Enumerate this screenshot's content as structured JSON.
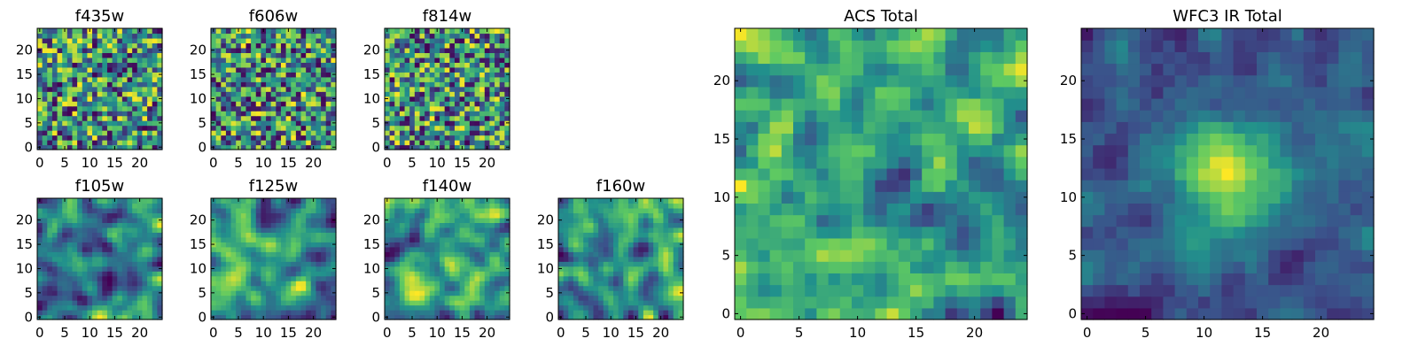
{
  "chart_data": [
    {
      "type": "heatmap",
      "title": "f435w",
      "size": 25,
      "xticks": [
        0,
        5,
        10,
        15,
        20
      ],
      "yticks": [
        0,
        5,
        10,
        15,
        20
      ],
      "colormap": "viridis",
      "value_range": [
        0,
        1
      ],
      "pattern": "noise",
      "seed": 11
    },
    {
      "type": "heatmap",
      "title": "f606w",
      "size": 25,
      "xticks": [
        0,
        5,
        10,
        15,
        20
      ],
      "yticks": [
        0,
        5,
        10,
        15,
        20
      ],
      "colormap": "viridis",
      "value_range": [
        0,
        1
      ],
      "pattern": "noise",
      "seed": 23
    },
    {
      "type": "heatmap",
      "title": "f814w",
      "size": 25,
      "xticks": [
        0,
        5,
        10,
        15,
        20
      ],
      "yticks": [
        0,
        5,
        10,
        15,
        20
      ],
      "colormap": "viridis",
      "value_range": [
        0,
        1
      ],
      "pattern": "noise",
      "seed": 37
    },
    {
      "type": "heatmap",
      "title": "f105w",
      "size": 25,
      "xticks": [
        0,
        5,
        10,
        15,
        20
      ],
      "yticks": [
        0,
        5,
        10,
        15,
        20
      ],
      "colormap": "viridis",
      "value_range": [
        0,
        1
      ],
      "pattern": "smooth",
      "seed": 41
    },
    {
      "type": "heatmap",
      "title": "f125w",
      "size": 25,
      "xticks": [
        0,
        5,
        10,
        15,
        20
      ],
      "yticks": [
        0,
        5,
        10,
        15,
        20
      ],
      "colormap": "viridis",
      "value_range": [
        0,
        1
      ],
      "pattern": "smooth",
      "seed": 53
    },
    {
      "type": "heatmap",
      "title": "f140w",
      "size": 25,
      "xticks": [
        0,
        5,
        10,
        15,
        20
      ],
      "yticks": [
        0,
        5,
        10,
        15,
        20
      ],
      "colormap": "viridis",
      "value_range": [
        0,
        1
      ],
      "pattern": "smooth",
      "seed": 67
    },
    {
      "type": "heatmap",
      "title": "f160w",
      "size": 25,
      "xticks": [
        0,
        5,
        10,
        15,
        20
      ],
      "yticks": [
        0,
        5,
        10,
        15,
        20
      ],
      "colormap": "viridis",
      "value_range": [
        0,
        1
      ],
      "pattern": "smooth",
      "seed": 79
    },
    {
      "type": "heatmap",
      "title": "ACS Total",
      "size": 25,
      "xticks": [
        0,
        5,
        10,
        15,
        20
      ],
      "yticks": [
        0,
        5,
        10,
        15,
        20
      ],
      "colormap": "viridis",
      "value_range": [
        0,
        1
      ],
      "pattern": "medium",
      "seed": 83
    },
    {
      "type": "heatmap",
      "title": "WFC3 IR Total",
      "size": 25,
      "xticks": [
        0,
        5,
        10,
        15,
        20
      ],
      "yticks": [
        0,
        5,
        10,
        15,
        20
      ],
      "colormap": "viridis",
      "value_range": [
        0,
        1
      ],
      "pattern": "source",
      "seed": 97
    }
  ],
  "colors": {
    "viridis_stops": [
      "#440154",
      "#3b528b",
      "#21918c",
      "#5ec962",
      "#fde725"
    ]
  }
}
